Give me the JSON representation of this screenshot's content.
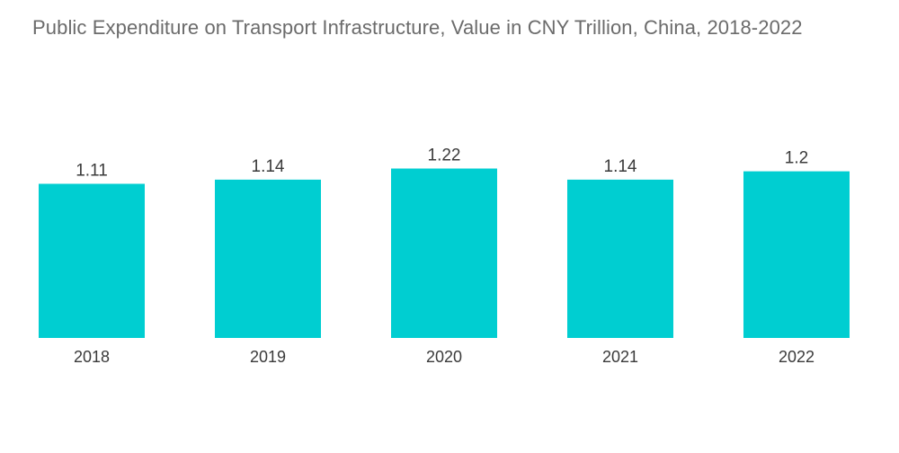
{
  "chart_data": {
    "type": "bar",
    "title": "Public Expenditure on Transport Infrastructure, Value in CNY Trillion, China, 2018-2022",
    "categories": [
      "2018",
      "2019",
      "2020",
      "2021",
      "2022"
    ],
    "values": [
      1.11,
      1.14,
      1.22,
      1.14,
      1.2
    ],
    "value_labels": [
      "1.11",
      "1.14",
      "1.22",
      "1.14",
      "1.2"
    ],
    "xlabel": "",
    "ylabel": "",
    "grid": false,
    "legend": "none",
    "bar_color": "#00CED1"
  }
}
